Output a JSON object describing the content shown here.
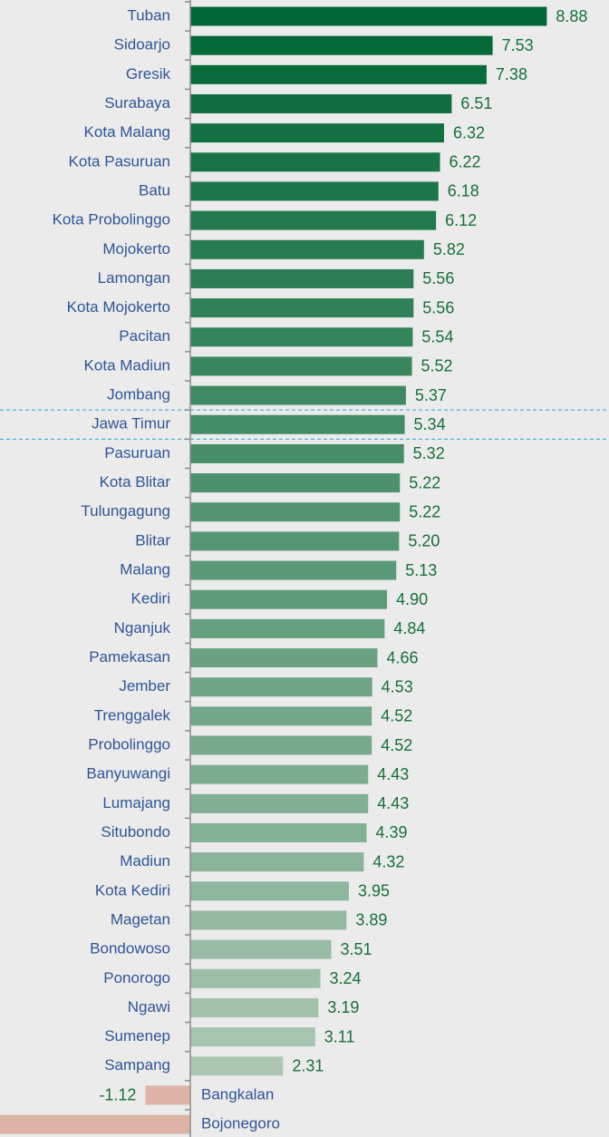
{
  "chart_data": {
    "type": "hbar",
    "categories": [
      "Tuban",
      "Sidoarjo",
      "Gresik",
      "Surabaya",
      "Kota Malang",
      "Kota Pasuruan",
      "Batu",
      "Kota Probolinggo",
      "Mojokerto",
      "Lamongan",
      "Kota Mojokerto",
      "Pacitan",
      "Kota Madiun",
      "Jombang",
      "Jawa Timur",
      "Pasuruan",
      "Kota Blitar",
      "Tulungagung",
      "Blitar",
      "Malang",
      "Kediri",
      "Nganjuk",
      "Pamekasan",
      "Jember",
      "Trenggalek",
      "Probolinggo",
      "Banyuwangi",
      "Lumajang",
      "Situbondo",
      "Madiun",
      "Kota Kediri",
      "Magetan",
      "Bondowoso",
      "Ponorogo",
      "Ngawi",
      "Sumenep",
      "Sampang",
      "Bangkalan",
      "Bojonegoro"
    ],
    "values": [
      8.88,
      7.53,
      7.38,
      6.51,
      6.32,
      6.22,
      6.18,
      6.12,
      5.82,
      5.56,
      5.56,
      5.54,
      5.52,
      5.37,
      5.34,
      5.32,
      5.22,
      5.22,
      5.2,
      5.13,
      4.9,
      4.84,
      4.66,
      4.53,
      4.52,
      4.52,
      4.43,
      4.43,
      4.39,
      4.32,
      3.95,
      3.89,
      3.51,
      3.24,
      3.19,
      3.11,
      2.31,
      -1.12,
      -4.8
    ],
    "value_labels": [
      "8.88",
      "7.53",
      "7.38",
      "6.51",
      "6.32",
      "6.22",
      "6.18",
      "6.12",
      "5.82",
      "5.56",
      "5.56",
      "5.54",
      "5.52",
      "5.37",
      "5.34",
      "5.32",
      "5.22",
      "5.22",
      "5.20",
      "5.13",
      "4.90",
      "4.84",
      "4.66",
      "4.53",
      "4.52",
      "4.52",
      "4.43",
      "4.43",
      "4.39",
      "4.32",
      "3.95",
      "3.89",
      "3.51",
      "3.24",
      "3.19",
      "3.11",
      "2.31",
      "-1.12",
      null
    ],
    "color_start": "#006633",
    "color_end": "#abc7b3",
    "negative_color": "#dcb3a6",
    "highlight": "Jawa Timur",
    "highlight_color": "#29a3e0"
  }
}
